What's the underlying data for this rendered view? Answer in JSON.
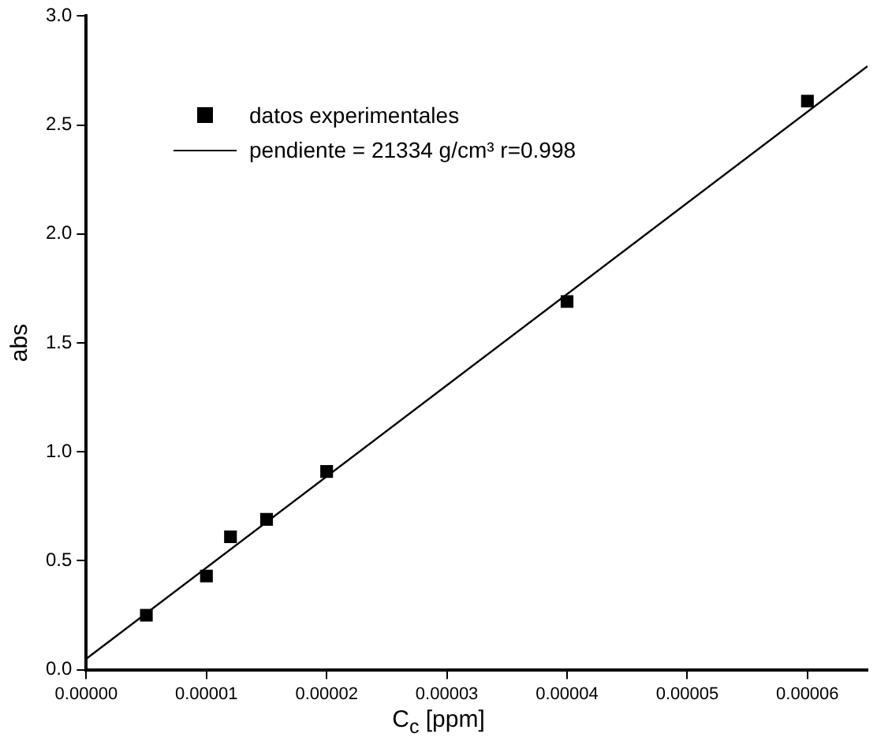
{
  "chart_data": {
    "type": "scatter",
    "xlabel": "C$_{c}$ [ppm]",
    "ylabel": "abs",
    "xlim": [
      0,
      6.5e-05
    ],
    "ylim": [
      0,
      3
    ],
    "xticks": [
      {
        "value": 0,
        "label": "0.00000"
      },
      {
        "value": 1e-05,
        "label": "0.00001"
      },
      {
        "value": 2e-05,
        "label": "0.00002"
      },
      {
        "value": 3e-05,
        "label": "0.00003"
      },
      {
        "value": 4e-05,
        "label": "0.00004"
      },
      {
        "value": 5e-05,
        "label": "0.00005"
      },
      {
        "value": 6e-05,
        "label": "0.00006"
      }
    ],
    "yticks": [
      {
        "value": 0,
        "label": "0.0"
      },
      {
        "value": 0.5,
        "label": "0.5"
      },
      {
        "value": 1,
        "label": "1.0"
      },
      {
        "value": 1.5,
        "label": "1.5"
      },
      {
        "value": 2,
        "label": "2.0"
      },
      {
        "value": 2.5,
        "label": "2.5"
      },
      {
        "value": 3,
        "label": "3.0"
      }
    ],
    "grid": false,
    "legend": "top left",
    "series": [
      {
        "name": "datos experimentales",
        "marker": "square",
        "color": "#000000",
        "x": [
          5e-06,
          1e-05,
          1.2e-05,
          1.5e-05,
          2e-05,
          4e-05,
          6e-05
        ],
        "values": [
          0.25,
          0.43,
          0.61,
          0.69,
          0.91,
          1.69,
          2.61
        ]
      },
      {
        "name": "pendiente = 21334 g/cm³ r=0.998",
        "type": "line",
        "marker": "none",
        "color": "#000000",
        "x": [
          0,
          6.5e-05
        ],
        "values": [
          0.05,
          2.77
        ]
      }
    ]
  }
}
